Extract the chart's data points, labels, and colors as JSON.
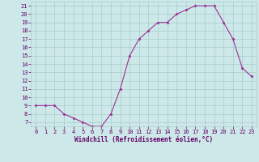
{
  "x": [
    0,
    1,
    2,
    3,
    4,
    5,
    6,
    7,
    8,
    9,
    10,
    11,
    12,
    13,
    14,
    15,
    16,
    17,
    18,
    19,
    20,
    21,
    22,
    23
  ],
  "y": [
    9,
    9,
    9,
    8,
    7.5,
    7,
    6.5,
    6.5,
    8,
    11,
    15,
    17,
    18,
    19,
    19,
    20,
    20.5,
    21,
    21,
    21,
    19,
    17,
    13.5,
    12.5
  ],
  "line_color": "#993399",
  "marker": "D",
  "marker_size": 1.5,
  "bg_color": "#cce8e8",
  "grid_color": "#aacccc",
  "xlabel": "Windchill (Refroidissement éolien,°C)",
  "xlabel_color": "#660066",
  "xlabel_fontsize": 5.5,
  "tick_color": "#660066",
  "tick_fontsize": 5,
  "xlim": [
    -0.5,
    23.5
  ],
  "ylim": [
    6.5,
    21.5
  ],
  "yticks": [
    7,
    8,
    9,
    10,
    11,
    12,
    13,
    14,
    15,
    16,
    17,
    18,
    19,
    20,
    21
  ],
  "xticks": [
    0,
    1,
    2,
    3,
    4,
    5,
    6,
    7,
    8,
    9,
    10,
    11,
    12,
    13,
    14,
    15,
    16,
    17,
    18,
    19,
    20,
    21,
    22,
    23
  ]
}
